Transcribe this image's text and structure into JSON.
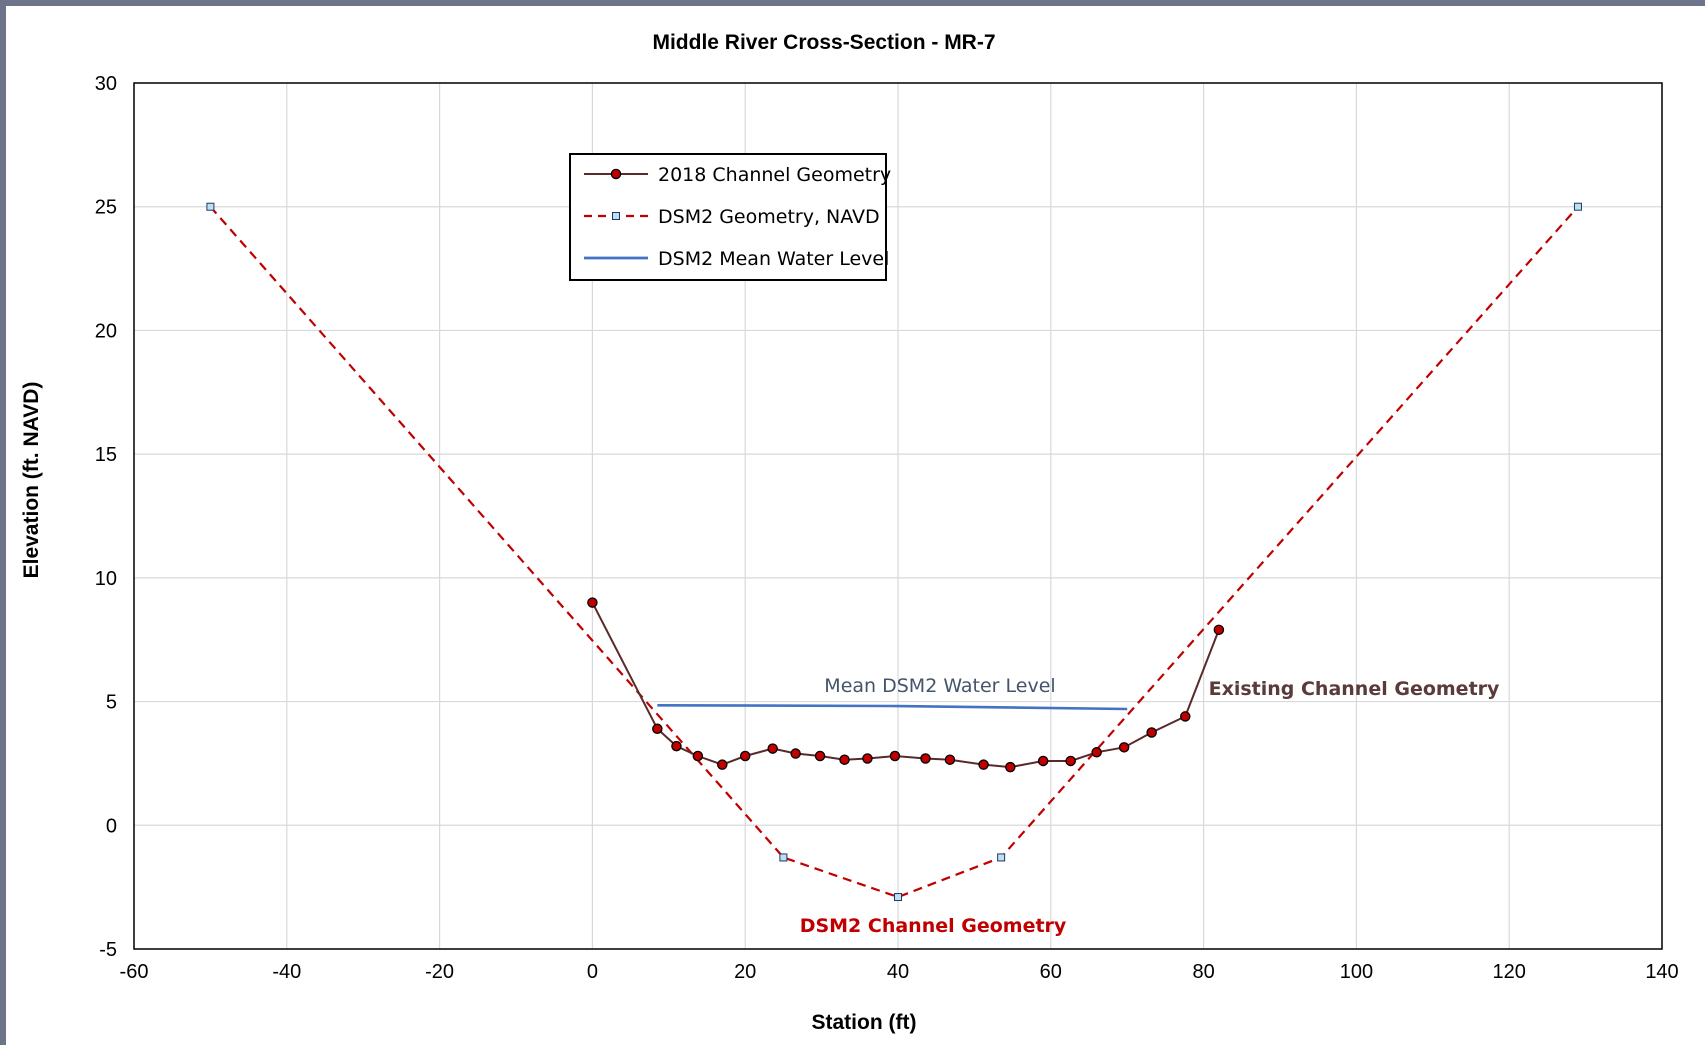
{
  "chart_data": {
    "type": "line",
    "title": "Middle River Cross-Section - MR-7",
    "xlabel": "Station (ft)",
    "ylabel": "Elevation (ft. NAVD)",
    "xlim": [
      -60,
      140
    ],
    "ylim": [
      -5,
      30
    ],
    "x_ticks": [
      "-60",
      "-40",
      "-20",
      "0",
      "20",
      "40",
      "60",
      "80",
      "100",
      "120",
      "140"
    ],
    "y_ticks": [
      "-5",
      "0",
      "5",
      "10",
      "15",
      "20",
      "25",
      "30"
    ],
    "grid": true,
    "legend_position": "top-left",
    "series": [
      {
        "name": "2018 Channel Geometry",
        "color": "#5a2a2a",
        "marker_fill": "#c00000",
        "style": "solid-circle-markers",
        "x": [
          0,
          8.5,
          11,
          13.8,
          17,
          20,
          23.6,
          26.6,
          29.8,
          33,
          36,
          39.6,
          43.6,
          46.8,
          51.2,
          54.7,
          59,
          62.6,
          66,
          69.6,
          73.2,
          77.6,
          82
        ],
        "y": [
          9.0,
          3.9,
          3.2,
          2.8,
          2.45,
          2.8,
          3.1,
          2.9,
          2.8,
          2.65,
          2.7,
          2.8,
          2.7,
          2.65,
          2.45,
          2.35,
          2.6,
          2.6,
          2.95,
          3.15,
          3.75,
          4.4,
          7.9
        ]
      },
      {
        "name": "DSM2 Geometry, NAVD",
        "color": "#c00000",
        "marker_fill": "#bde0f0",
        "style": "dashed-square-markers",
        "x": [
          -50,
          25,
          40,
          53.5,
          129
        ],
        "y": [
          25.0,
          -1.3,
          -2.9,
          -1.3,
          25.0
        ]
      },
      {
        "name": "DSM2 Mean Water Level",
        "color": "#4472c4",
        "style": "solid",
        "x": [
          8.5,
          40,
          70
        ],
        "y": [
          4.85,
          4.82,
          4.7
        ]
      }
    ],
    "annotations": [
      {
        "text": "Mean DSM2 Water Level",
        "color": "#44546a"
      },
      {
        "text": "Existing Channel Geometry",
        "color": "#5a3a3a"
      },
      {
        "text": "DSM2 Channel Geometry",
        "color": "#c00000"
      }
    ]
  }
}
